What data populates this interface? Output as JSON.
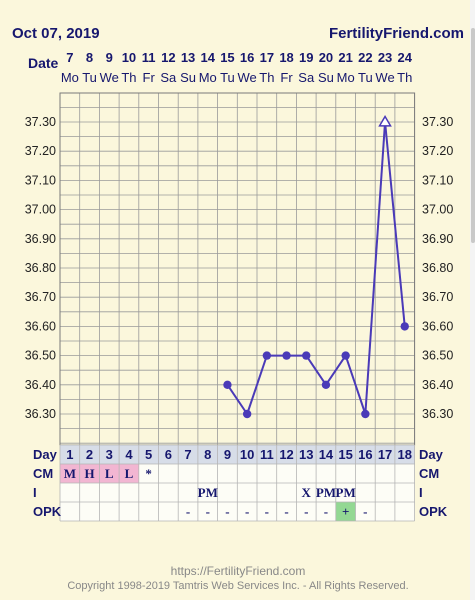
{
  "header": {
    "date": "Oct 07, 2019",
    "site": "FertilityFriend.com",
    "date_label": "Date"
  },
  "chart_data": {
    "type": "line",
    "dates": [
      "7",
      "8",
      "9",
      "10",
      "11",
      "12",
      "13",
      "14",
      "15",
      "16",
      "17",
      "18",
      "19",
      "20",
      "21",
      "22",
      "23",
      "24"
    ],
    "weekdays": [
      "Mo",
      "Tu",
      "We",
      "Th",
      "Fr",
      "Sa",
      "Su",
      "Mo",
      "Tu",
      "We",
      "Th",
      "Fr",
      "Sa",
      "Su",
      "Mo",
      "Tu",
      "We",
      "Th"
    ],
    "cycle_days": [
      "1",
      "2",
      "3",
      "4",
      "5",
      "6",
      "7",
      "8",
      "9",
      "10",
      "11",
      "12",
      "13",
      "14",
      "15",
      "16",
      "17",
      "18"
    ],
    "temperatures": [
      null,
      null,
      null,
      null,
      null,
      null,
      null,
      null,
      36.4,
      36.3,
      36.5,
      36.5,
      36.5,
      36.4,
      36.5,
      36.3,
      37.3,
      36.6
    ],
    "open_marker_indices": [
      16
    ],
    "yticks": [
      "37.30",
      "37.20",
      "37.10",
      "37.00",
      "36.90",
      "36.80",
      "36.70",
      "36.60",
      "36.50",
      "36.40",
      "36.30"
    ],
    "ylim": [
      36.2,
      37.4
    ],
    "grid": true
  },
  "rows": {
    "day_label": "Day",
    "cm": {
      "label": "CM",
      "values": [
        "M",
        "H",
        "L",
        "L",
        "*",
        "",
        "",
        "",
        "",
        "",
        "",
        "",
        "",
        "",
        "",
        "",
        "",
        ""
      ],
      "highlight": [
        0,
        1,
        2,
        3
      ]
    },
    "i": {
      "label": "I",
      "values": [
        "",
        "",
        "",
        "",
        "",
        "",
        "",
        "PM",
        "",
        "",
        "",
        "",
        "X",
        "PM",
        "PM",
        "",
        "",
        ""
      ]
    },
    "opk": {
      "label": "OPK",
      "values": [
        "",
        "",
        "",
        "",
        "",
        "",
        "-",
        "-",
        "-",
        "-",
        "-",
        "-",
        "-",
        "-",
        "+",
        "-",
        "",
        ""
      ],
      "positive": [
        14
      ]
    }
  },
  "footer": {
    "url": "https://FertilityFriend.com",
    "copyright": "Copyright 1998-2019 Tamtris Web Services Inc. - All Rights Reserved."
  },
  "colors": {
    "line": "#4a3ab8",
    "grid_bg": "#fbf7dc",
    "grid_line": "#9a9a9a",
    "cm_highlight": "#f2b6d2",
    "opk_positive": "#93d893",
    "label_text": "#16176e"
  }
}
